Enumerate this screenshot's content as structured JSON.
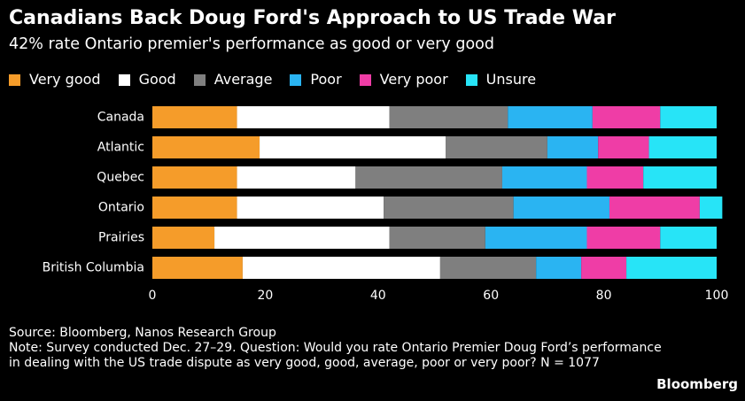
{
  "header": {
    "title": "Canadians Back Doug Ford's Approach to US Trade War",
    "subtitle": "42% rate Ontario premier's performance as good or very good"
  },
  "footer": {
    "source": "Source: Bloomberg, Nanos Research Group",
    "note": "Note: Survey conducted Dec. 27–29. Question: Would you rate Ontario Premier Doug Ford’s performance in dealing with the US trade dispute as very good, good, average, poor or very poor? N = 1077",
    "brand": "Bloomberg"
  },
  "colors": {
    "background": "#000000",
    "text": "#ffffff",
    "very_good": "#f59c2a",
    "good": "#ffffff",
    "average": "#7f7f7f",
    "poor": "#2ab4f2",
    "very_poor": "#ef3da6",
    "unsure": "#27e4f7"
  },
  "chart_data": {
    "type": "bar",
    "orientation": "horizontal",
    "stacked": true,
    "title": "Canadians Back Doug Ford's Approach to US Trade War",
    "subtitle": "42% rate Ontario premier's performance as good or very good",
    "xlabel": "",
    "ylabel": "",
    "xlim": [
      0,
      100
    ],
    "xticks": [
      0,
      20,
      40,
      60,
      80,
      100
    ],
    "grid": false,
    "legend_position": "top-left",
    "categories": [
      "Canada",
      "Atlantic",
      "Quebec",
      "Ontario",
      "Prairies",
      "British Columbia"
    ],
    "series": [
      {
        "name": "Very good",
        "color": "#f59c2a",
        "values": [
          15,
          19,
          15,
          15,
          11,
          16
        ]
      },
      {
        "name": "Good",
        "color": "#ffffff",
        "values": [
          27,
          33,
          21,
          26,
          31,
          35
        ]
      },
      {
        "name": "Average",
        "color": "#7f7f7f",
        "values": [
          21,
          18,
          26,
          23,
          17,
          17
        ]
      },
      {
        "name": "Poor",
        "color": "#2ab4f2",
        "values": [
          15,
          9,
          15,
          17,
          18,
          8
        ]
      },
      {
        "name": "Very poor",
        "color": "#ef3da6",
        "values": [
          12,
          9,
          10,
          16,
          13,
          8
        ]
      },
      {
        "name": "Unsure",
        "color": "#27e4f7",
        "values": [
          10,
          12,
          13,
          4,
          10,
          16
        ]
      }
    ]
  }
}
